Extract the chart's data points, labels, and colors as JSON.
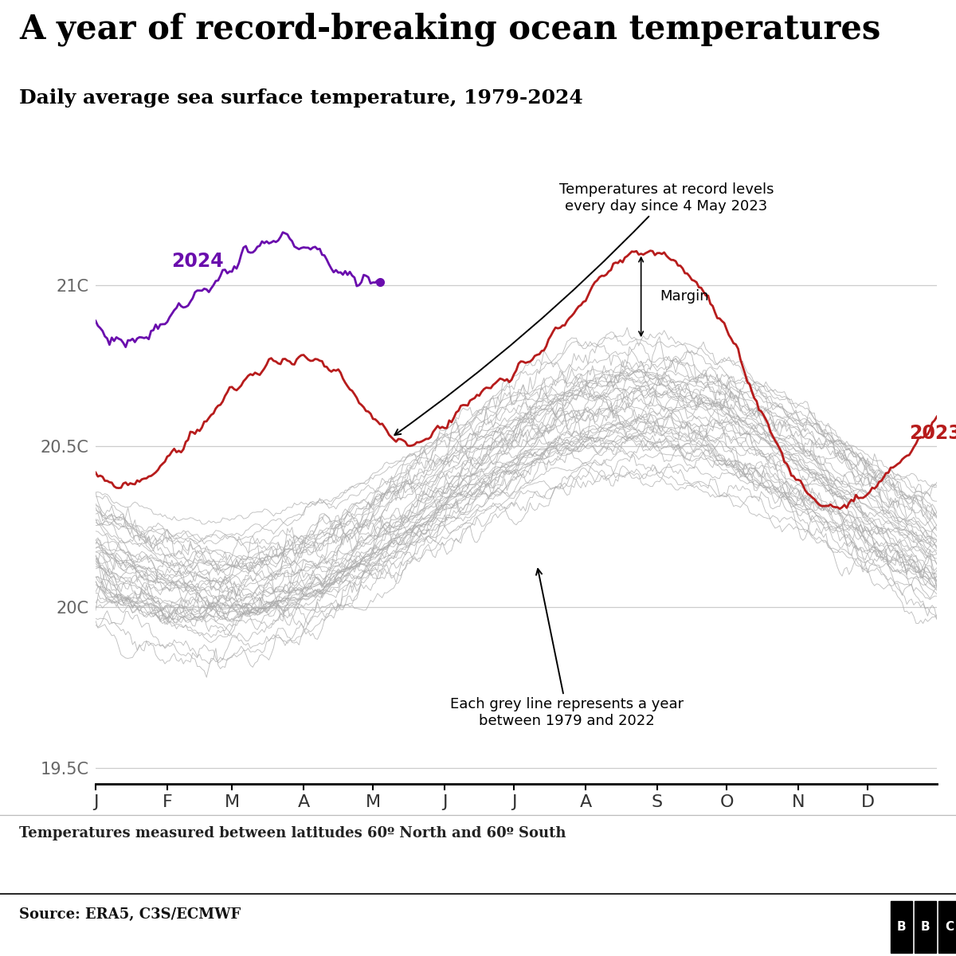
{
  "title": "A year of record-breaking ocean temperatures",
  "subtitle": "Daily average sea surface temperature, 1979-2024",
  "footnote": "Temperatures measured between latitudes 60º North and 60º South",
  "source": "Source: ERA5, C3S/ECMWF",
  "yticks": [
    19.5,
    20.0,
    20.5,
    21.0
  ],
  "ytick_labels": [
    "19.5C",
    "20C",
    "20.5C",
    "21C"
  ],
  "month_labels": [
    "J",
    "F",
    "M",
    "A",
    "M",
    "J",
    "J",
    "A",
    "S",
    "O",
    "N",
    "D"
  ],
  "month_positions": [
    1,
    32,
    60,
    91,
    121,
    152,
    182,
    213,
    244,
    274,
    305,
    335
  ],
  "color_2023": "#b71c1c",
  "color_2024": "#6a0dad",
  "color_grey": "#aaaaaa",
  "annotation_record": "Temperatures at record levels\nevery day since 4 May 2023",
  "annotation_grey": "Each grey line represents a year\nbetween 1979 and 2022",
  "annotation_margin": "Margin",
  "label_2023": "2023",
  "label_2024": "2024",
  "ylim_min": 19.45,
  "ylim_max": 21.38,
  "background_color": "#ffffff",
  "title_fontsize": 30,
  "subtitle_fontsize": 18,
  "tick_label_fontsize": 15,
  "annotation_fontsize": 13,
  "year_label_fontsize": 17
}
